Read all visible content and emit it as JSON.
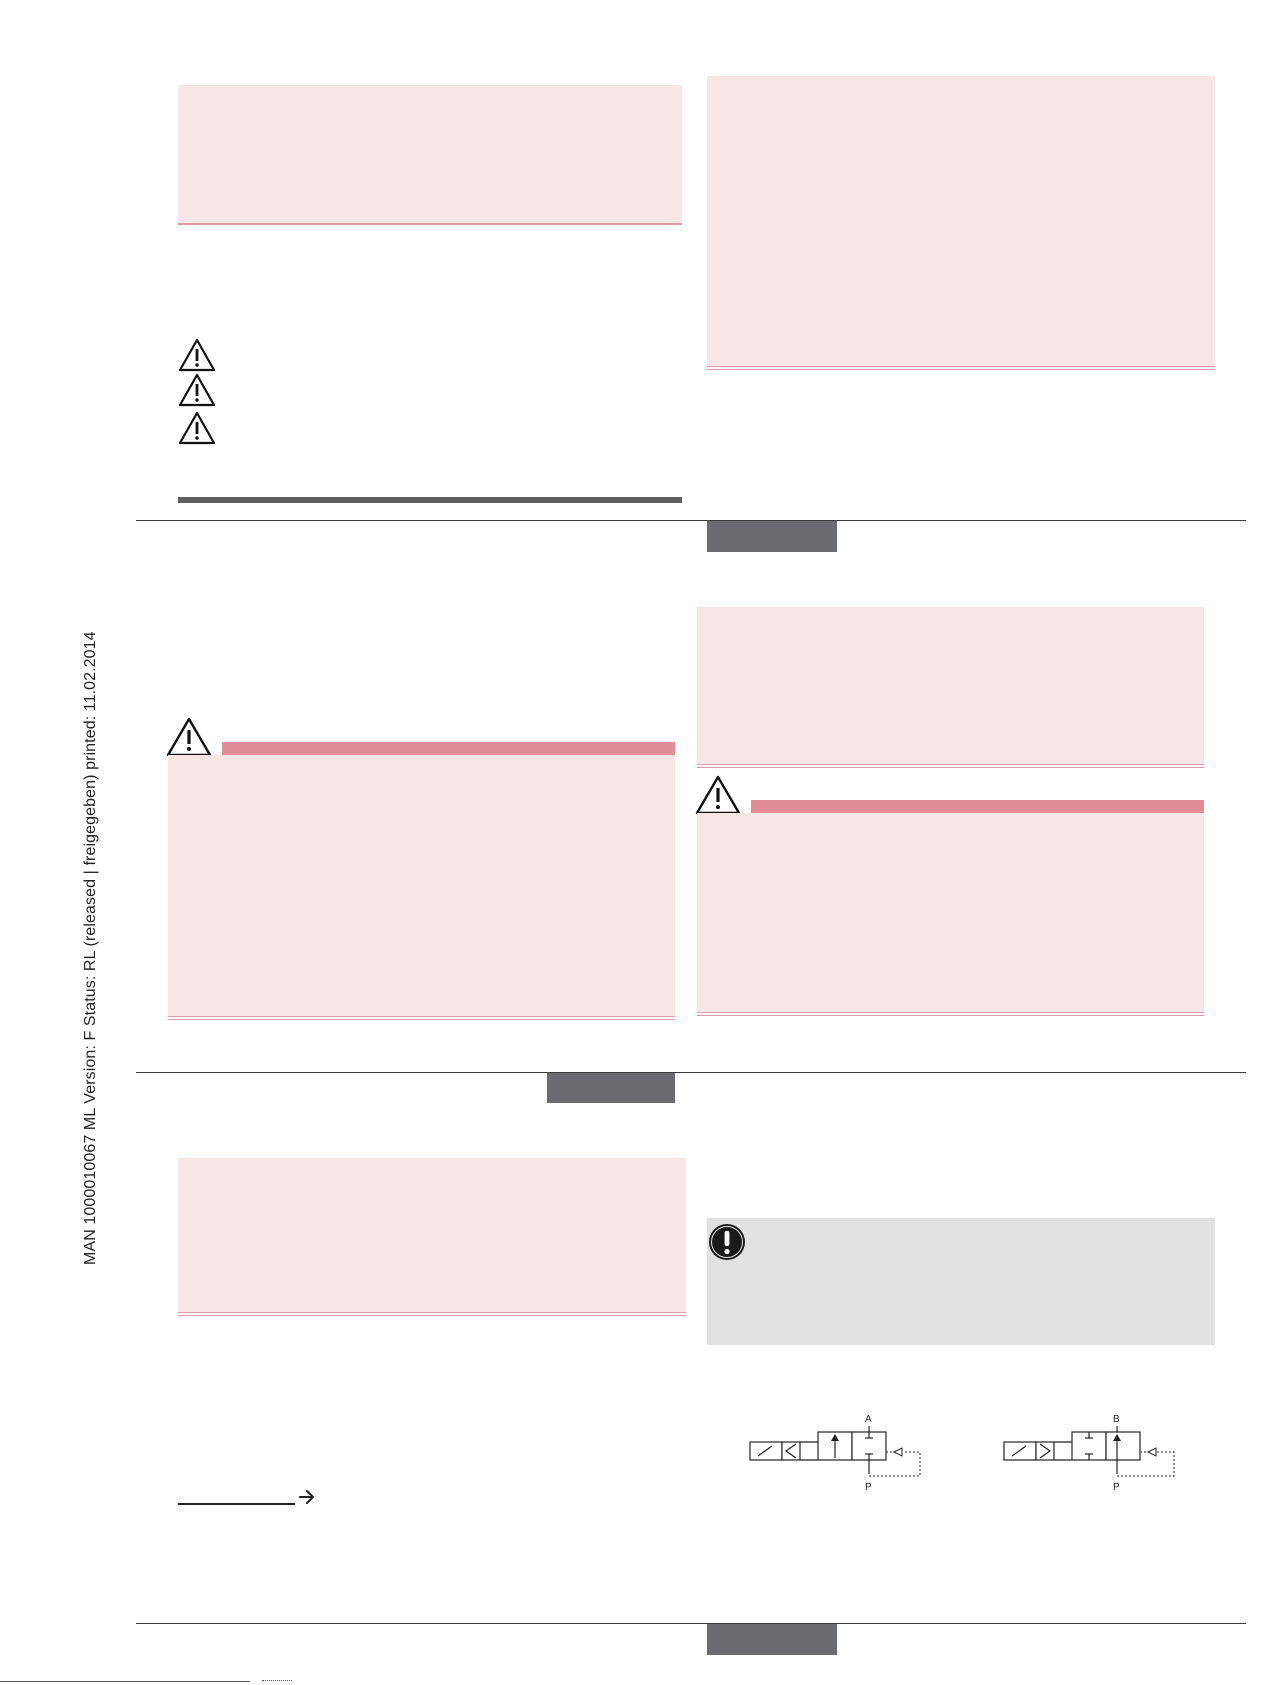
{
  "sidebar": {
    "document_status": "MAN  1000010067  ML  Version: F  Status: RL (released | freigegeben)  printed: 11.02.2014"
  },
  "diagrams": {
    "left": {
      "port_top": "A",
      "port_bottom": "P"
    },
    "right": {
      "port_top": "B",
      "port_bottom": "P"
    }
  },
  "icons": {
    "warning": "warning-triangle-icon",
    "attention": "exclamation-circle-icon",
    "arrow": "arrow-right-icon"
  },
  "colors": {
    "pink_panel": "#f8e6e6",
    "pink_stripe": "#e08d98",
    "tab_grey": "#696b70",
    "note_grey": "#e1e1e1"
  }
}
